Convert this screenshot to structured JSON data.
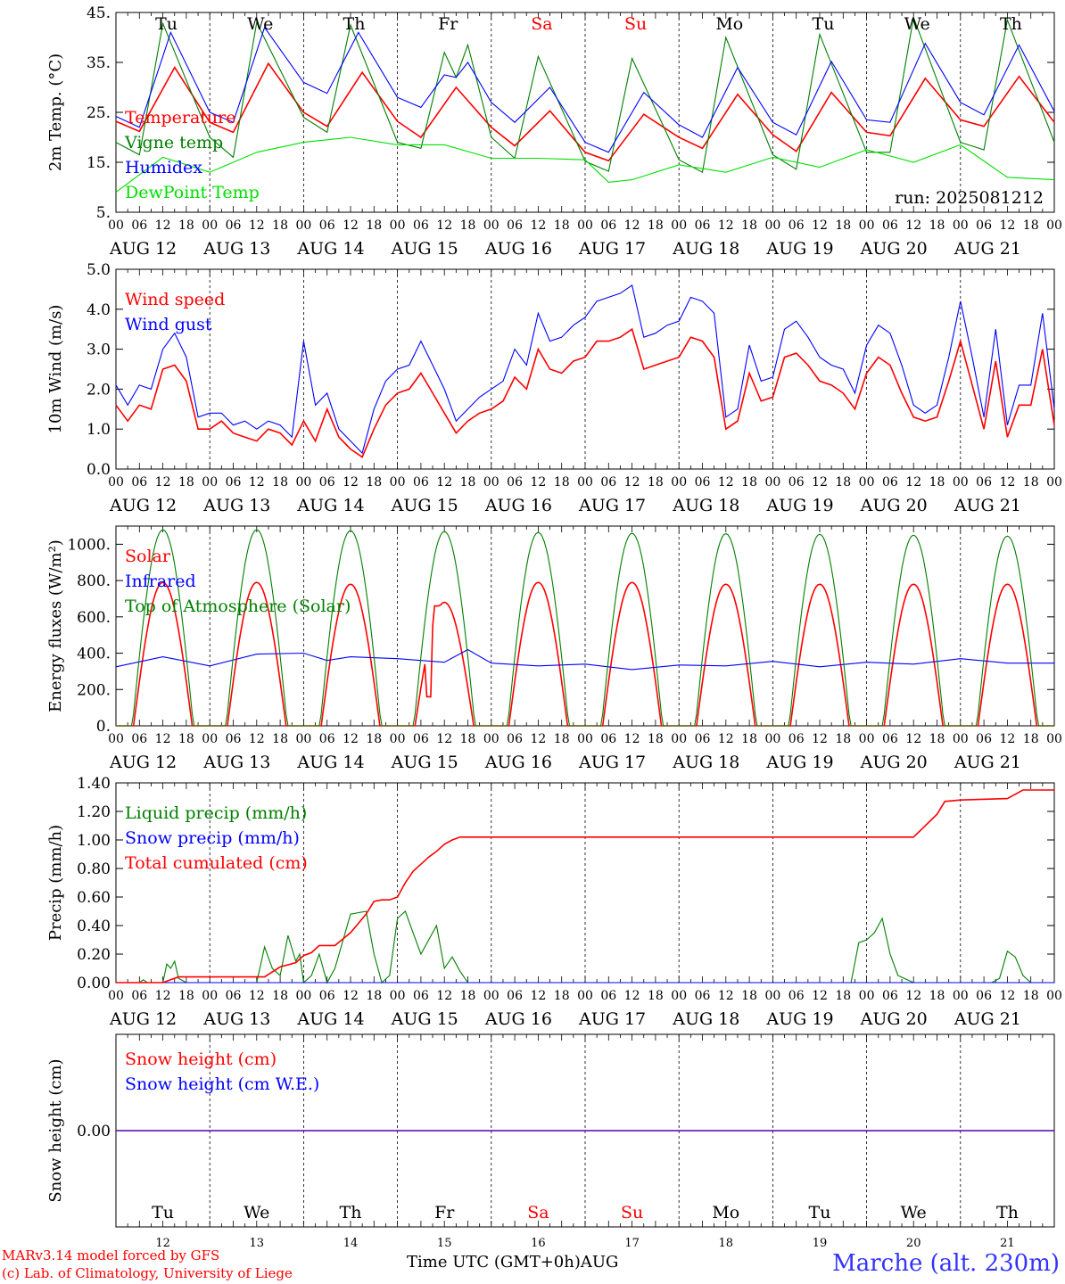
{
  "run_label": "run: 2025081212",
  "footer": {
    "credit_line1": "MARv3.14 model forced by GFS",
    "credit_line2": "(c) Lab. of Climatology, University of Liege",
    "x_axis_title": "Time UTC (GMT+0h)AUG",
    "location": "Marche (alt. 230m)"
  },
  "colors": {
    "red": "#ff0000",
    "blue": "#0000ff",
    "green": "#007f00",
    "lightgreen": "#00e000",
    "grid": "#000000"
  },
  "days": {
    "weekday_labels": [
      "Tu",
      "We",
      "Th",
      "Fr",
      "Sa",
      "Su",
      "Mo",
      "Tu",
      "We",
      "Th"
    ],
    "weekend_flags": [
      false,
      false,
      false,
      false,
      true,
      true,
      false,
      false,
      false,
      false
    ],
    "date_labels": [
      "AUG 12",
      "AUG 13",
      "AUG 14",
      "AUG 15",
      "AUG 16",
      "AUG 17",
      "AUG 18",
      "AUG 19",
      "AUG 20",
      "AUG 21"
    ],
    "day_numbers": [
      "12",
      "13",
      "14",
      "15",
      "16",
      "17",
      "18",
      "19",
      "20",
      "21"
    ],
    "hour_labels": [
      "00",
      "06",
      "12",
      "18"
    ],
    "final_hour_label": "00"
  },
  "chart_data": [
    {
      "type": "line",
      "ylabel": "2m Temp. (°C)",
      "ylim": [
        5,
        45
      ],
      "yticks": [
        5,
        15,
        25,
        35,
        45
      ],
      "ytick_labels": [
        "5.",
        "15.",
        "25.",
        "35.",
        "45."
      ],
      "x_unit": "hours since AUG 12 00 UTC",
      "series": [
        {
          "name": "Temperature",
          "color": "#ff0000",
          "x": [
            0,
            6,
            15,
            24,
            30,
            39,
            48,
            54,
            63,
            72,
            78,
            87,
            96,
            102,
            111,
            120,
            126,
            135,
            144,
            150,
            159,
            168,
            174,
            183,
            192,
            198,
            207,
            216,
            222,
            231,
            240
          ],
          "values": [
            23.2,
            21.2,
            34.0,
            23.0,
            21.0,
            34.8,
            25.0,
            22.2,
            33.0,
            23.2,
            20.0,
            30.0,
            22.0,
            18.3,
            25.3,
            17.0,
            15.3,
            24.6,
            20.0,
            17.8,
            28.6,
            20.5,
            17.2,
            29.0,
            21.0,
            20.3,
            31.8,
            23.5,
            22.2,
            32.2,
            23.0
          ]
        },
        {
          "name": "Vigne temp",
          "color": "#007f00",
          "x": [
            0,
            6,
            12,
            24,
            30,
            36,
            48,
            54,
            60,
            72,
            78,
            84,
            87,
            90,
            96,
            102,
            108,
            120,
            126,
            132,
            144,
            150,
            156,
            168,
            174,
            180,
            192,
            198,
            204,
            216,
            222,
            228,
            240
          ],
          "values": [
            19.0,
            16.5,
            42.8,
            20.0,
            16.0,
            43.0,
            24.0,
            21.0,
            42.5,
            19.0,
            17.8,
            37.0,
            32.0,
            38.5,
            20.0,
            15.8,
            36.2,
            15.2,
            13.2,
            35.8,
            15.5,
            13.0,
            40.0,
            16.5,
            13.6,
            40.6,
            17.0,
            17.0,
            44.0,
            19.0,
            17.5,
            43.5,
            19.0
          ]
        },
        {
          "name": "Humidex",
          "color": "#0000ff",
          "x": [
            0,
            6,
            14,
            24,
            30,
            38,
            48,
            54,
            62,
            72,
            78,
            84,
            87,
            90,
            96,
            102,
            111,
            120,
            126,
            135,
            144,
            150,
            159,
            168,
            174,
            183,
            192,
            198,
            207,
            216,
            222,
            231,
            240
          ],
          "values": [
            24.2,
            22.0,
            41.0,
            25.0,
            23.0,
            42.0,
            31.0,
            28.8,
            41.0,
            28.0,
            26.0,
            32.5,
            32.0,
            35.0,
            27.0,
            23.0,
            30.0,
            19.0,
            17.0,
            29.0,
            22.5,
            20.0,
            34.0,
            23.0,
            20.5,
            35.2,
            23.5,
            23.0,
            38.8,
            27.0,
            24.5,
            38.5,
            25.2
          ]
        },
        {
          "name": "DewPoint Temp",
          "color": "#00e000",
          "x": [
            0,
            12,
            24,
            36,
            48,
            60,
            72,
            84,
            96,
            108,
            120,
            126,
            132,
            144,
            156,
            168,
            180,
            192,
            204,
            216,
            228,
            240
          ],
          "values": [
            9.0,
            16.0,
            13.0,
            17.0,
            19.0,
            20.0,
            18.5,
            18.5,
            15.8,
            15.8,
            15.5,
            11.0,
            11.5,
            14.5,
            13.0,
            16.0,
            14.0,
            17.5,
            15.0,
            18.5,
            12.0,
            11.5
          ]
        }
      ]
    },
    {
      "type": "line",
      "ylabel": "10m Wind (m/s)",
      "ylim": [
        0,
        5
      ],
      "yticks": [
        0,
        1,
        2,
        3,
        4,
        5
      ],
      "ytick_labels": [
        "0.0",
        "1.0",
        "2.0",
        "3.0",
        "4.0",
        "5.0"
      ],
      "series": [
        {
          "name": "Wind speed",
          "color": "#ff0000",
          "x": [
            0,
            3,
            6,
            9,
            12,
            15,
            18,
            21,
            24,
            27,
            30,
            33,
            36,
            39,
            42,
            45,
            48,
            51,
            54,
            57,
            60,
            63,
            66,
            69,
            72,
            75,
            78,
            81,
            84,
            87,
            90,
            93,
            96,
            99,
            102,
            105,
            108,
            111,
            114,
            117,
            120,
            123,
            126,
            129,
            132,
            135,
            138,
            141,
            144,
            147,
            150,
            153,
            156,
            159,
            162,
            165,
            168,
            171,
            174,
            177,
            180,
            183,
            186,
            189,
            192,
            195,
            198,
            201,
            204,
            207,
            210,
            213,
            216,
            219,
            222,
            225,
            228,
            231,
            234,
            237,
            240
          ],
          "values": [
            1.6,
            1.2,
            1.6,
            1.5,
            2.5,
            2.6,
            2.2,
            1.0,
            1.0,
            1.2,
            0.9,
            0.8,
            0.7,
            1.0,
            0.9,
            0.6,
            1.2,
            0.7,
            1.5,
            0.8,
            0.5,
            0.3,
            1.0,
            1.6,
            1.9,
            2.0,
            2.4,
            1.9,
            1.4,
            0.9,
            1.2,
            1.4,
            1.5,
            1.7,
            2.3,
            2.0,
            3.0,
            2.5,
            2.4,
            2.7,
            2.8,
            3.2,
            3.2,
            3.3,
            3.5,
            2.5,
            2.6,
            2.7,
            2.8,
            3.3,
            3.2,
            2.8,
            1.0,
            1.2,
            2.4,
            1.7,
            1.8,
            2.8,
            2.9,
            2.6,
            2.2,
            2.1,
            1.9,
            1.5,
            2.4,
            2.8,
            2.6,
            1.9,
            1.3,
            1.2,
            1.3,
            2.2,
            3.2,
            2.1,
            1.0,
            2.7,
            0.8,
            1.6,
            1.6,
            3.0,
            1.1
          ]
        },
        {
          "name": "Wind gust",
          "color": "#0000ff",
          "x": [
            0,
            3,
            6,
            9,
            12,
            15,
            18,
            21,
            24,
            27,
            30,
            33,
            36,
            39,
            42,
            45,
            48,
            51,
            54,
            57,
            60,
            63,
            66,
            69,
            72,
            75,
            78,
            81,
            84,
            87,
            90,
            93,
            96,
            99,
            102,
            105,
            108,
            111,
            114,
            117,
            120,
            123,
            126,
            129,
            132,
            135,
            138,
            141,
            144,
            147,
            150,
            153,
            156,
            159,
            162,
            165,
            168,
            171,
            174,
            177,
            180,
            183,
            186,
            189,
            192,
            195,
            198,
            201,
            204,
            207,
            210,
            213,
            216,
            219,
            222,
            225,
            228,
            231,
            234,
            237,
            240
          ],
          "values": [
            2.1,
            1.6,
            2.1,
            2.0,
            3.0,
            3.4,
            2.8,
            1.3,
            1.4,
            1.4,
            1.1,
            1.2,
            1.0,
            1.2,
            1.1,
            0.8,
            3.2,
            1.6,
            1.9,
            1.0,
            0.7,
            0.4,
            1.5,
            2.2,
            2.5,
            2.6,
            3.2,
            2.6,
            2.0,
            1.2,
            1.5,
            1.8,
            2.0,
            2.2,
            3.0,
            2.6,
            3.9,
            3.2,
            3.3,
            3.6,
            3.8,
            4.2,
            4.3,
            4.4,
            4.6,
            3.3,
            3.4,
            3.6,
            3.7,
            4.3,
            4.2,
            3.9,
            1.3,
            1.5,
            3.1,
            2.2,
            2.3,
            3.5,
            3.7,
            3.3,
            2.8,
            2.6,
            2.5,
            1.9,
            3.1,
            3.6,
            3.4,
            2.6,
            1.6,
            1.4,
            1.6,
            2.8,
            4.2,
            2.8,
            1.3,
            3.5,
            1.1,
            2.1,
            2.1,
            3.9,
            1.5
          ]
        }
      ]
    },
    {
      "type": "line",
      "ylabel": "Energy fluxes (W/m²)",
      "ylim": [
        0,
        1100
      ],
      "yticks": [
        0,
        200,
        400,
        600,
        800,
        1000
      ],
      "ytick_labels": [
        "0.",
        "200.",
        "400.",
        "600.",
        "800.",
        "1000."
      ],
      "series": [
        {
          "name": "Solar",
          "color": "#ff0000",
          "profile": "daily-peak",
          "sunrise_hour": 4.5,
          "sunset_hour": 19.5,
          "daily_peaks": [
            790,
            790,
            780,
            680,
            790,
            790,
            780,
            780,
            780,
            780
          ],
          "notes_day_index_3_dips": [
            {
              "x": 80,
              "value": 160
            },
            {
              "x": 82,
              "value": 660
            }
          ]
        },
        {
          "name": "Infrared",
          "color": "#0000ff",
          "x": [
            0,
            12,
            24,
            36,
            48,
            54,
            60,
            72,
            84,
            90,
            96,
            108,
            120,
            132,
            144,
            156,
            168,
            180,
            192,
            204,
            216,
            228,
            240
          ],
          "values": [
            325,
            380,
            330,
            395,
            400,
            360,
            380,
            370,
            350,
            420,
            345,
            330,
            340,
            310,
            335,
            330,
            355,
            325,
            350,
            340,
            370,
            345,
            345
          ]
        },
        {
          "name": "Top of Atmosphere (Solar)",
          "color": "#007f00",
          "profile": "daily-peak",
          "sunrise_hour": 4.2,
          "sunset_hour": 19.8,
          "daily_peaks": [
            1080,
            1080,
            1075,
            1070,
            1065,
            1060,
            1058,
            1055,
            1050,
            1045
          ]
        }
      ]
    },
    {
      "type": "line",
      "ylabel": "Precip (mm/h)",
      "ylim": [
        0,
        1.4
      ],
      "yticks": [
        0,
        0.2,
        0.4,
        0.6,
        0.8,
        1.0,
        1.2,
        1.4
      ],
      "ytick_labels": [
        "0.00",
        "0.20",
        "0.40",
        "0.60",
        "0.80",
        "1.00",
        "1.20",
        "1.40"
      ],
      "series": [
        {
          "name": "Liquid precip (mm/h)",
          "color": "#007f00",
          "x": [
            0,
            6,
            7,
            8,
            10,
            12,
            13,
            14,
            15,
            16,
            18,
            30,
            36,
            38,
            40,
            42,
            44,
            46,
            47,
            48,
            50,
            52,
            54,
            56,
            60,
            64,
            66,
            68,
            70,
            72,
            74,
            76,
            78,
            82,
            84,
            86,
            88,
            90,
            92,
            96,
            108,
            188,
            190,
            192,
            194,
            196,
            198,
            200,
            204,
            224,
            226,
            228,
            230,
            232,
            234
          ],
          "values": [
            0,
            0,
            0.02,
            0,
            0,
            0,
            0.13,
            0.1,
            0.15,
            0.03,
            0,
            0,
            0,
            0.25,
            0.1,
            0.05,
            0.33,
            0.15,
            0.2,
            0,
            0.05,
            0.2,
            0,
            0.1,
            0.48,
            0.5,
            0.2,
            0,
            0.05,
            0.45,
            0.5,
            0.35,
            0.2,
            0.4,
            0.1,
            0.18,
            0.08,
            0,
            0,
            0,
            0,
            0,
            0.28,
            0.3,
            0.35,
            0.45,
            0.2,
            0.05,
            0,
            0,
            0.03,
            0.22,
            0.18,
            0.05,
            0
          ]
        },
        {
          "name": "Snow precip (mm/h)",
          "color": "#0000ff",
          "x": [
            0,
            240
          ],
          "values": [
            0,
            0
          ]
        },
        {
          "name": "Total cumulated (cm)",
          "color": "#ff0000",
          "x": [
            0,
            12,
            14,
            16,
            38,
            42,
            46,
            48,
            50,
            52,
            56,
            60,
            64,
            66,
            68,
            70,
            72,
            74,
            76,
            78,
            80,
            82,
            84,
            86,
            88,
            96,
            108,
            144,
            180,
            204,
            210,
            212,
            216,
            228,
            232,
            240
          ],
          "values": [
            0,
            0,
            0.02,
            0.04,
            0.04,
            0.11,
            0.14,
            0.19,
            0.21,
            0.26,
            0.26,
            0.35,
            0.48,
            0.57,
            0.58,
            0.58,
            0.6,
            0.7,
            0.78,
            0.83,
            0.88,
            0.92,
            0.97,
            1.0,
            1.02,
            1.02,
            1.02,
            1.02,
            1.02,
            1.02,
            1.18,
            1.27,
            1.28,
            1.29,
            1.35,
            1.35
          ]
        }
      ]
    },
    {
      "type": "line",
      "ylabel": "Snow height (cm)",
      "ylim": [
        -1,
        1
      ],
      "yticks": [
        0
      ],
      "ytick_labels": [
        "0.00"
      ],
      "series": [
        {
          "name": "Snow height (cm)",
          "color": "#ff0000",
          "x": [
            0,
            240
          ],
          "values": [
            0,
            0
          ]
        },
        {
          "name": "Snow height (cm W.E.)",
          "color": "#0000ff",
          "x": [
            0,
            240
          ],
          "values": [
            0,
            0
          ]
        }
      ]
    }
  ],
  "panels_meta": [
    {
      "id": "temp",
      "show_weekdays_top": true,
      "show_run": true,
      "legend_entries": 4
    },
    {
      "id": "wind",
      "legend_entries": 2
    },
    {
      "id": "flux",
      "legend_entries": 3
    },
    {
      "id": "precip",
      "legend_entries": 3
    },
    {
      "id": "snow",
      "legend_entries": 2,
      "show_weekdays_bottom": true
    }
  ]
}
